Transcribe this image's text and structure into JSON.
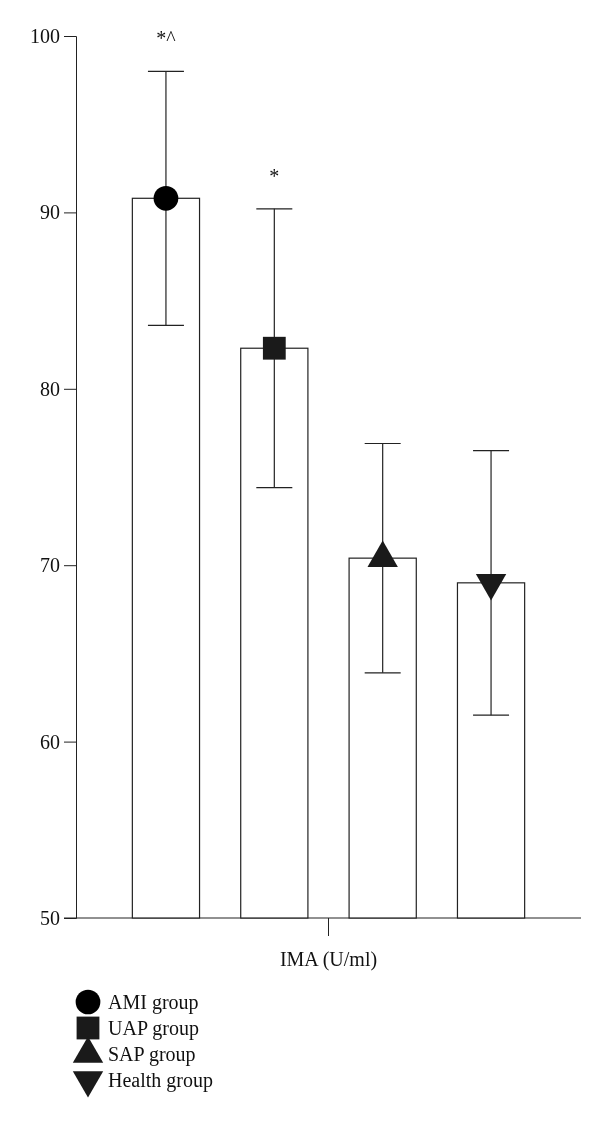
{
  "chart_data": {
    "type": "bar",
    "xlabel": "IMA (U/ml)",
    "categories": [
      null,
      null,
      null,
      null
    ],
    "series": [
      {
        "color": "#ffffff",
        "values": [
          90.8,
          82.3,
          70.4,
          69.0
        ],
        "errors": [
          7.2,
          7.9,
          6.5,
          7.5
        ]
      },
      {
        "type": "scatter",
        "name": "AMI group",
        "color": "#000000",
        "marker": "circle",
        "values": [
          90.8,
          null,
          null,
          null
        ]
      },
      {
        "type": "scatter",
        "name": "UAP group",
        "color": "#1a1a1a",
        "marker": "square",
        "values": [
          null,
          82.3,
          null,
          null
        ]
      },
      {
        "type": "scatter",
        "name": "SAP group",
        "color": "#1a1a1a",
        "marker": "triangle",
        "values": [
          null,
          null,
          70.4,
          null
        ]
      },
      {
        "type": "scatter",
        "name": "Health group",
        "color": "#1a1a1a",
        "marker": "triangle-down",
        "values": [
          null,
          null,
          null,
          69.0
        ]
      }
    ],
    "ylim": [
      50,
      100
    ],
    "yticks": [
      50,
      60,
      70,
      80,
      90,
      100
    ],
    "grid": false,
    "legend": "bottom left",
    "annotations": [
      "*^",
      "*"
    ]
  }
}
